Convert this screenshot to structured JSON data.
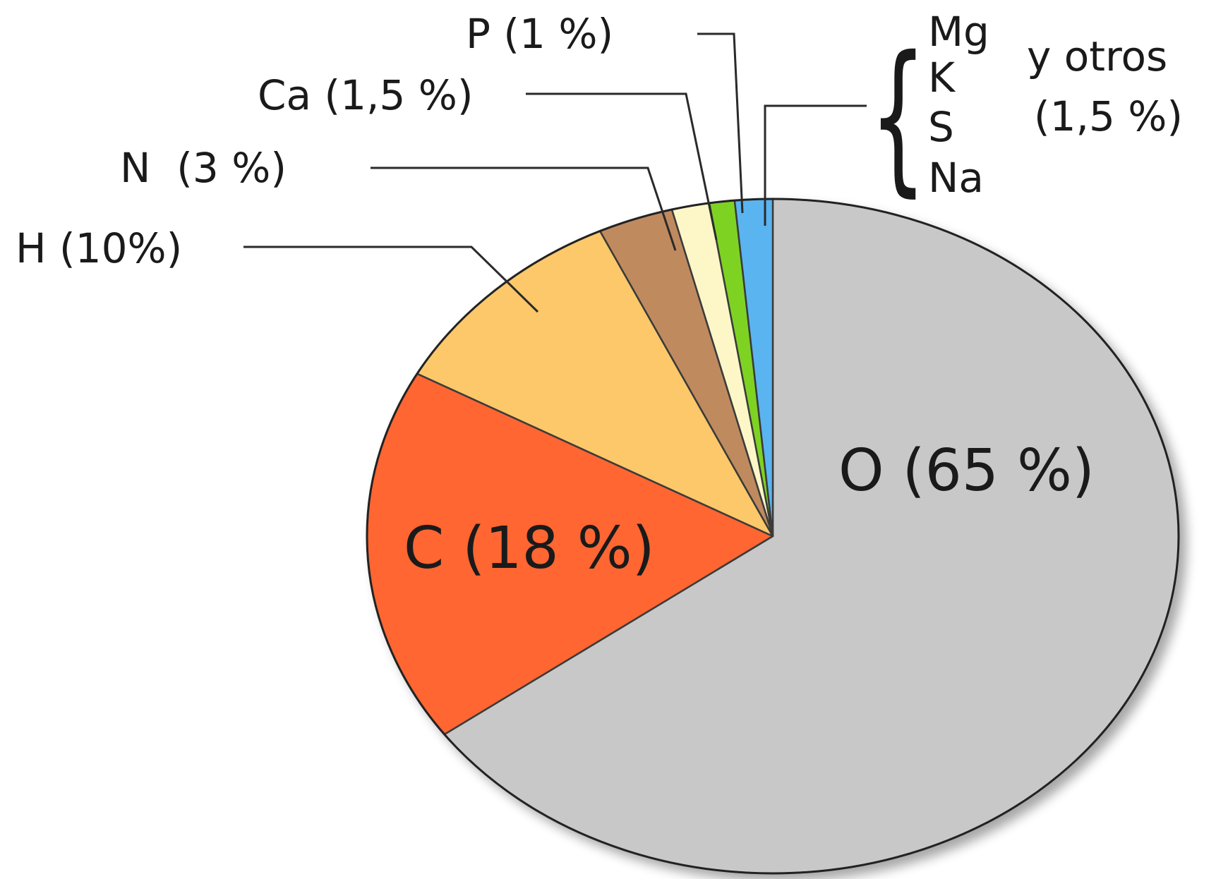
{
  "chart_data": {
    "type": "pie",
    "title": "",
    "slices": [
      {
        "name": "O",
        "label": "O (65 %)",
        "value": 65,
        "color": "#c8c8c8"
      },
      {
        "name": "C",
        "label": "C (18 %)",
        "value": 18,
        "color": "#ff6633"
      },
      {
        "name": "H",
        "label": "H (10%)",
        "value": 10,
        "color": "#fcc86a"
      },
      {
        "name": "N",
        "label": "N  (3 %)",
        "value": 3,
        "color": "#c08a5e"
      },
      {
        "name": "Ca",
        "label": "Ca (1,5 %)",
        "value": 1.5,
        "color": "#fdf7c8"
      },
      {
        "name": "P",
        "label": "P (1 %)",
        "value": 1,
        "color": "#7ed321"
      },
      {
        "name": "Mg, K, S, Na y otros",
        "label": "y otros (1,5 %)",
        "value": 1.5,
        "color": "#5ab4f0"
      }
    ],
    "others_group": {
      "elements": [
        "Mg",
        "K",
        "S",
        "Na"
      ],
      "caption": "y otros",
      "percent_label": "(1,5 %)"
    }
  }
}
